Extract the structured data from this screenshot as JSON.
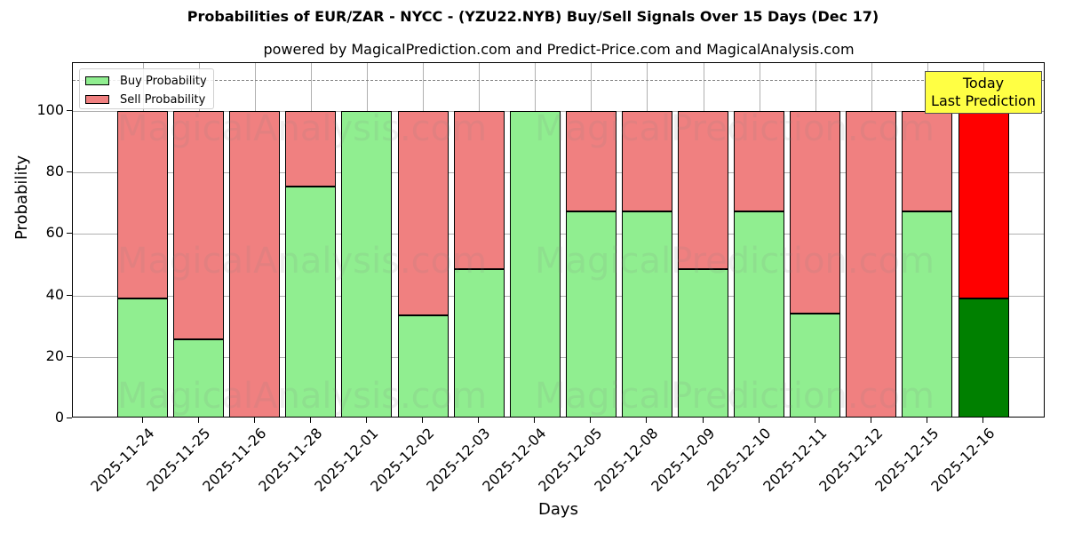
{
  "title": "Probabilities of EUR/ZAR - NYCC -  (YZU22.NYB) Buy/Sell Signals Over 15 Days (Dec 17)",
  "subtitle": "powered by MagicalPrediction.com and Predict-Price.com and MagicalAnalysis.com",
  "legend": {
    "buy": "Buy Probability",
    "sell": "Sell Probability"
  },
  "annotation": {
    "line1": "Today",
    "line2": "Last Prediction"
  },
  "watermarks": [
    "MagicalAnalysis.com",
    "MagicalPrediction.com"
  ],
  "colors": {
    "buy": "#90ee90",
    "sell": "#f08080",
    "today_buy": "#008000",
    "today_sell": "#ff0000",
    "annotation_bg": "#ffff44"
  },
  "chart_data": {
    "type": "bar",
    "stacked": true,
    "title": "Probabilities of EUR/ZAR - NYCC -  (YZU22.NYB) Buy/Sell Signals Over 15 Days (Dec 17)",
    "subtitle": "powered by MagicalPrediction.com and Predict-Price.com and MagicalAnalysis.com",
    "xlabel": "Days",
    "ylabel": "Probability",
    "ylim": [
      0,
      115
    ],
    "yticks": [
      0,
      20,
      40,
      60,
      80,
      100
    ],
    "reference_line": {
      "y": 110,
      "style": "dashed",
      "color": "#808080"
    },
    "grid": true,
    "legend_position": "upper left",
    "categories": [
      "2025-11-24",
      "2025-11-25",
      "2025-11-26",
      "2025-11-28",
      "2025-12-01",
      "2025-12-02",
      "2025-12-03",
      "2025-12-04",
      "2025-12-05",
      "2025-12-08",
      "2025-12-09",
      "2025-12-10",
      "2025-12-11",
      "2025-12-12",
      "2025-12-15",
      "2025-12-16"
    ],
    "series": [
      {
        "name": "Buy Probability",
        "values": [
          38.9,
          25.6,
          0,
          75.5,
          100,
          33.5,
          48.5,
          100,
          67.4,
          67.4,
          48.6,
          67.4,
          34.2,
          0,
          67.4,
          38.9
        ]
      },
      {
        "name": "Sell Probability",
        "values": [
          61.1,
          74.4,
          100,
          24.5,
          0,
          66.5,
          51.5,
          0,
          32.6,
          32.6,
          51.4,
          32.6,
          65.8,
          100,
          32.6,
          61.1
        ]
      }
    ],
    "annotations": [
      {
        "text": "Today\nLast Prediction",
        "category": "2025-12-16"
      }
    ]
  }
}
